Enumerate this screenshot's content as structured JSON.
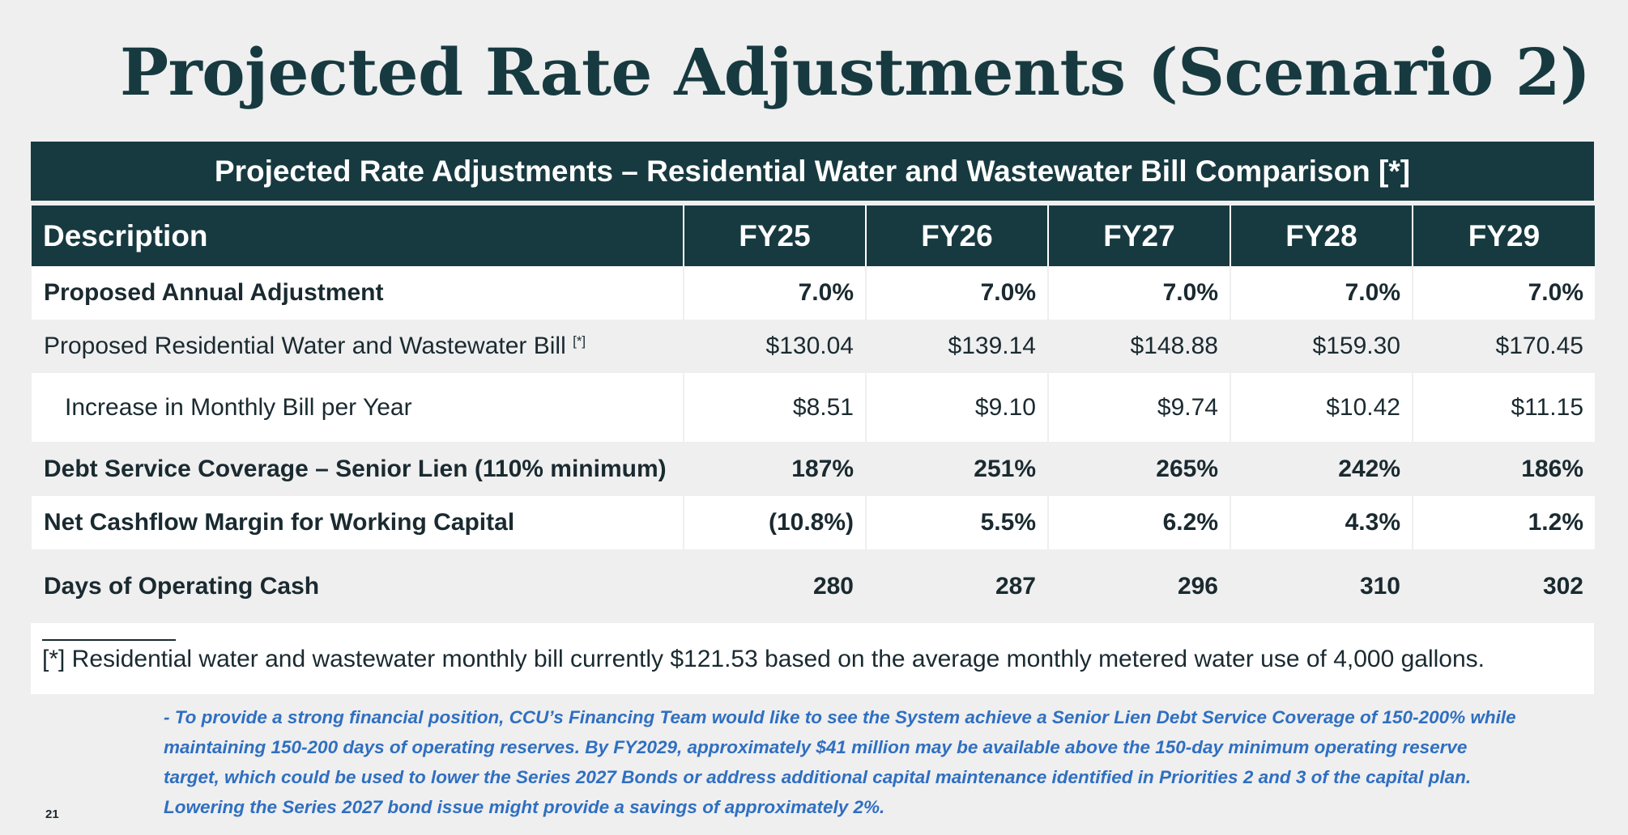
{
  "title": "Projected Rate Adjustments (Scenario 2)",
  "table": {
    "caption": "Projected Rate Adjustments – Residential Water and Wastewater Bill Comparison [*]",
    "columns": [
      "Description",
      "FY25",
      "FY26",
      "FY27",
      "FY28",
      "FY29"
    ],
    "rows": [
      {
        "label": "Proposed Annual Adjustment",
        "values": [
          "7.0%",
          "7.0%",
          "7.0%",
          "7.0%",
          "7.0%"
        ]
      },
      {
        "label": "Proposed Residential Water and Wastewater Bill",
        "marker": "[*]",
        "values": [
          "$130.04",
          "$139.14",
          "$148.88",
          "$159.30",
          "$170.45"
        ]
      },
      {
        "label": "Increase in Monthly Bill per Year",
        "values": [
          "$8.51",
          "$9.10",
          "$9.74",
          "$10.42",
          "$11.15"
        ]
      },
      {
        "label": "Debt Service Coverage – Senior Lien (110% minimum)",
        "values": [
          "187%",
          "251%",
          "265%",
          "242%",
          "186%"
        ]
      },
      {
        "label": "Net Cashflow Margin for Working Capital",
        "values": [
          "(10.8%)",
          "5.5%",
          "6.2%",
          "4.3%",
          "1.2%"
        ]
      },
      {
        "label": "Days of Operating Cash",
        "values": [
          "280",
          "287",
          "296",
          "310",
          "302"
        ]
      }
    ]
  },
  "footnote": "[*] Residential water and wastewater monthly bill currently $121.53 based on the average monthly metered water use of 4,000 gallons.",
  "note": "- To provide a strong financial position, CCU’s Financing Team would like to see the System achieve a Senior Lien Debt Service Coverage of 150-200% while maintaining 150-200 days of operating reserves. By FY2029, approximately $41 million may be available above the 150-day minimum operating reserve target, which could be used to lower the Series 2027 Bonds or address additional capital maintenance identified in Priorities 2 and 3 of the capital plan. Lowering the Series 2027 bond issue might provide a savings of approximately 2%.",
  "page_number": "21",
  "colors": {
    "header_bg": "#173a40",
    "note_text": "#2f6fc1",
    "page_bg": "#efefef"
  }
}
